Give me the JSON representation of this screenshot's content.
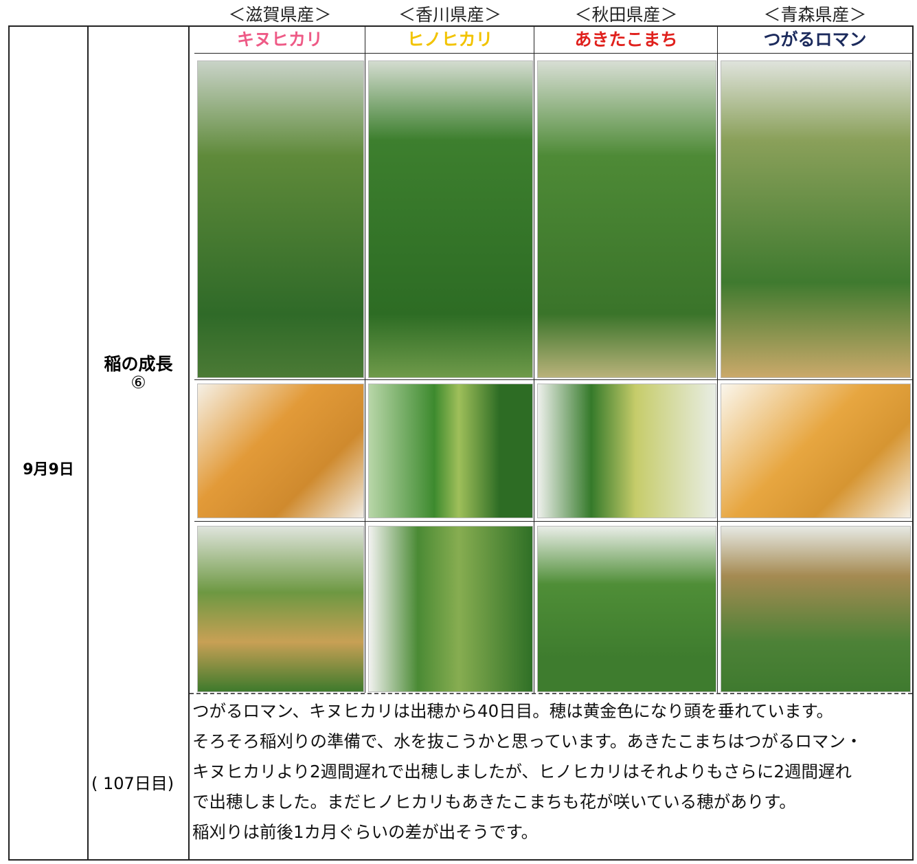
{
  "columns": [
    {
      "prefecture": "＜滋賀県産＞",
      "variety": "キヌヒカリ",
      "color": "#ee5a86"
    },
    {
      "prefecture": "＜香川県産＞",
      "variety": "ヒノヒカリ",
      "color": "#f2c300"
    },
    {
      "prefecture": "＜秋田県産＞",
      "variety": "あきたこまち",
      "color": "#e0201c"
    },
    {
      "prefecture": "＜青森県産＞",
      "variety": "つがるロマン",
      "color": "#1b2a5c"
    }
  ],
  "date": "9月9日",
  "stage": "稲の成長",
  "stage_number": "⑥",
  "day": "( 107日目)",
  "notes": [
    "つがるロマン、キヌヒカリは出穂から40日目。穂は黄金色になり頭を垂れています。",
    "そろそろ稲刈りの準備で、水を抜こうかと思っています。あきたこまちはつがるロマン・",
    "キヌヒカリより2週間遅れで出穂しましたが、ヒノヒカリはそれよりもさらに2週間遅れ",
    "で出穂しました。まだヒノヒカリもあきたこまちも花が咲いている穂がありす。",
    "稲刈りは前後1カ月ぐらいの差が出そうです。"
  ]
}
